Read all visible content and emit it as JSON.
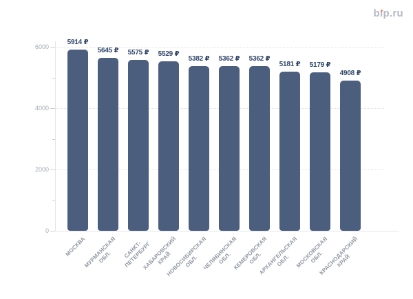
{
  "logo": {
    "text": "bip.ru",
    "text_color": "#b6b9c6",
    "dot_color": "#e87f62"
  },
  "chart_data": {
    "type": "bar",
    "title": "",
    "xlabel": "",
    "ylabel": "",
    "currency": "₽",
    "categories": [
      "МОСКВА",
      "МУРМАНСКАЯ\nОБЛ.",
      "САНКТ-\nПЕТЕРБУРГ",
      "ХАБАРОВСКИЙ\nКРАЙ",
      "НОВОСИБИРСКАЯ\nОБЛ.",
      "ЧЕЛЯБИНСКАЯ\nОБЛ.",
      "КЕМЕРОВСКАЯ\nОБЛ.",
      "АРХАНГЕЛЬСКАЯ\nОБЛ.",
      "МОСКОВСКАЯ\nОБЛ.",
      "КРАСНОДАРСКИЙ\nКРАЙ"
    ],
    "values": [
      5914,
      5645,
      5575,
      5529,
      5382,
      5362,
      5362,
      5181,
      5179,
      4908
    ],
    "value_labels": [
      "5914 ₽",
      "5645 ₽",
      "5575 ₽",
      "5529 ₽",
      "5382 ₽",
      "5362 ₽",
      "5362 ₽",
      "5181 ₽",
      "5179 ₽",
      "4908 ₽"
    ],
    "ylim": [
      0,
      6000
    ],
    "yticks": [
      0,
      2000,
      4000,
      6000
    ],
    "minor_yticks": [
      1000,
      3000,
      5000
    ],
    "grid": true,
    "gridline_style": "dotted",
    "legend": false,
    "bar_color": "#4b5e7d",
    "value_label_color": "#304669",
    "ytick_label_color": "#a4a9b4",
    "xtick_label_color": "#9096a2"
  }
}
